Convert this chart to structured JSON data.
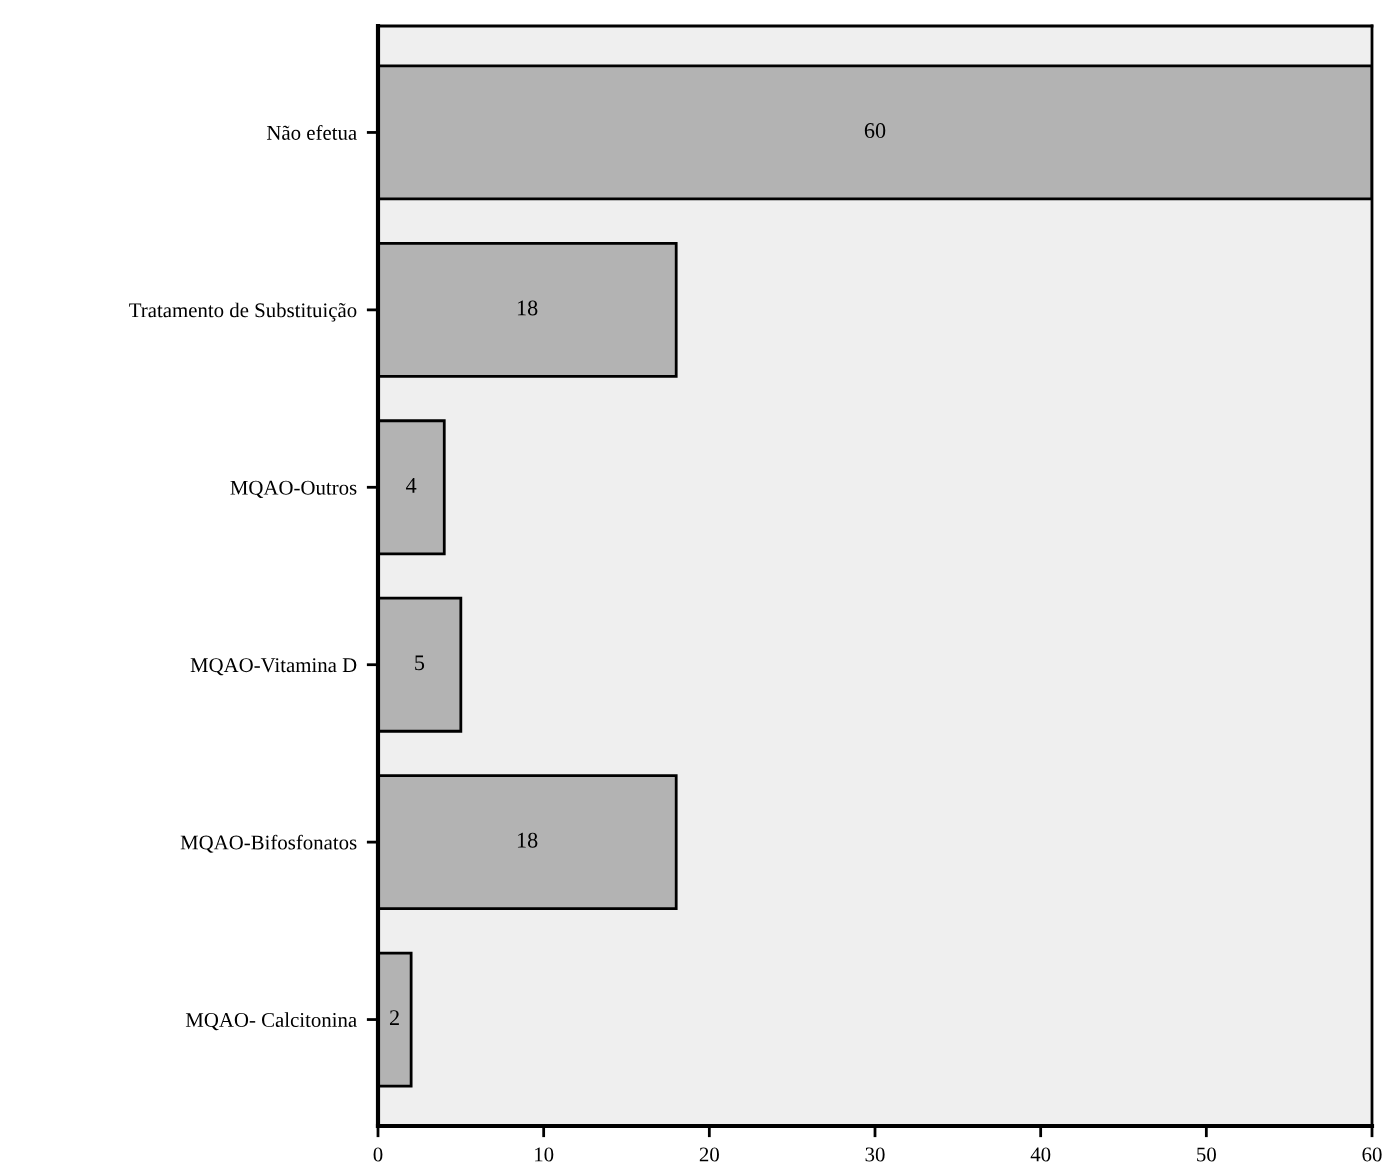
{
  "chart_data": {
    "type": "bar",
    "orientation": "horizontal",
    "categories": [
      "Não efetua",
      "Tratamento de Substituição",
      "MQAO-Outros",
      "MQAO-Vitamina D",
      "MQAO-Bifosfonatos",
      "MQAO- Calcitonina"
    ],
    "values": [
      60,
      18,
      4,
      5,
      18,
      2
    ],
    "color": "#b3b3b3",
    "xlim": [
      0,
      60
    ],
    "xticks": [
      0,
      10,
      20,
      30,
      40,
      50,
      60
    ],
    "data_labels": true,
    "grid": false,
    "legend": false
  }
}
